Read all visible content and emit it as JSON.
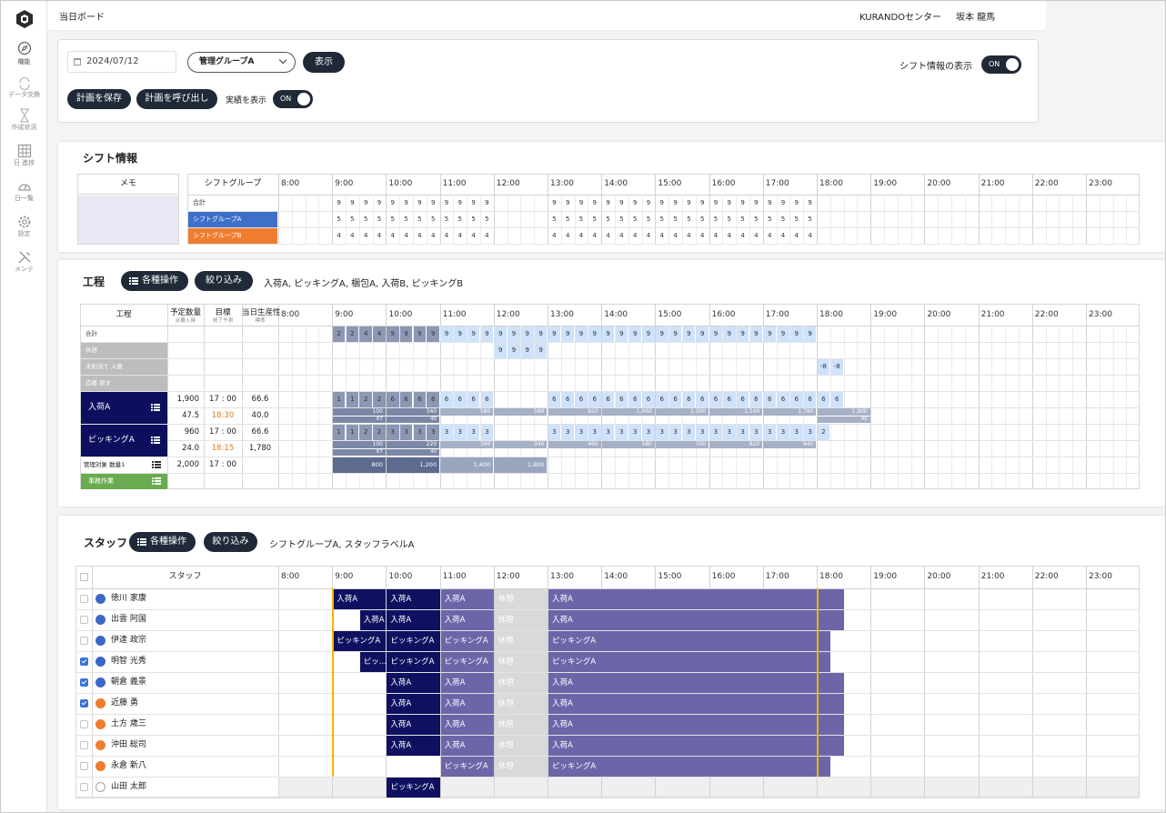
{
  "sidebar": {
    "items": [
      "機能",
      "データ交換",
      "作成状況",
      "日 進捗",
      "日一覧",
      "設定",
      "メンテ"
    ]
  },
  "header": {
    "title": "当日ボード",
    "center": "KURANDOセンター",
    "user": "坂本 龍馬"
  },
  "controls": {
    "date": "2024/07/12",
    "group": "管理グループA",
    "show_button": "表示",
    "shift_toggle_label": "シフト情報の表示",
    "shift_toggle": "ON",
    "save_button": "計画を保存",
    "load_button": "計画を呼び出し",
    "actual_label": "実績を表示",
    "actual_toggle": "ON"
  },
  "hours": [
    "8:00",
    "9:00",
    "10:00",
    "11:00",
    "12:00",
    "13:00",
    "14:00",
    "15:00",
    "16:00",
    "17:00",
    "18:00",
    "19:00",
    "20:00",
    "21:00",
    "22:00",
    "23:00"
  ],
  "shift": {
    "title": "シフト情報",
    "memo_header": "メモ",
    "group_header": "シフトグループ",
    "rows": [
      {
        "label": "合計",
        "color": "#ffffff",
        "values": [
          null,
          null,
          null,
          null,
          9,
          9,
          9,
          9,
          9,
          9,
          9,
          9,
          9,
          9,
          9,
          9,
          null,
          null,
          null,
          null,
          9,
          9,
          9,
          9,
          9,
          9,
          9,
          9,
          9,
          9,
          9,
          9,
          9,
          9,
          9,
          9,
          9,
          9,
          9,
          9,
          null,
          null,
          null,
          null,
          null,
          null,
          null,
          null,
          null,
          null,
          null,
          null,
          null,
          null,
          null,
          null,
          null,
          null,
          null,
          null,
          null,
          null,
          null,
          null
        ]
      },
      {
        "label": "シフトグループA",
        "color": "#3e6fc9",
        "values": [
          null,
          null,
          null,
          null,
          5,
          5,
          5,
          5,
          5,
          5,
          5,
          5,
          5,
          5,
          5,
          5,
          null,
          null,
          null,
          null,
          5,
          5,
          5,
          5,
          5,
          5,
          5,
          5,
          5,
          5,
          5,
          5,
          5,
          5,
          5,
          5,
          5,
          5,
          5,
          5,
          null,
          null,
          null,
          null,
          null,
          null,
          null,
          null,
          null,
          null,
          null,
          null,
          null,
          null,
          null,
          null,
          null,
          null,
          null,
          null,
          null,
          null,
          null,
          null
        ]
      },
      {
        "label": "シフトグループB",
        "color": "#ef7d30",
        "values": [
          null,
          null,
          null,
          null,
          4,
          4,
          4,
          4,
          4,
          4,
          4,
          4,
          4,
          4,
          4,
          4,
          null,
          null,
          null,
          null,
          4,
          4,
          4,
          4,
          4,
          4,
          4,
          4,
          4,
          4,
          4,
          4,
          4,
          4,
          4,
          4,
          4,
          4,
          4,
          4,
          null,
          null,
          null,
          null,
          null,
          null,
          null,
          null,
          null,
          null,
          null,
          null,
          null,
          null,
          null,
          null,
          null,
          null,
          null,
          null,
          null,
          null,
          null,
          null
        ]
      }
    ]
  },
  "process": {
    "title": "工程",
    "ops_button": "各種操作",
    "filter_button": "絞り込み",
    "filter_text": "入荷A, ピッキングA, 梱包A, 入荷B, ピッキングB",
    "columns": [
      {
        "label": "工程"
      },
      {
        "label": "予定数量",
        "sub": "必要人時"
      },
      {
        "label": "目標",
        "sub": "終了予測"
      },
      {
        "label": "当日生産性",
        "sub": "標準"
      }
    ],
    "summary_rows": [
      {
        "label": "合計",
        "shaded": false,
        "values": [
          null,
          null,
          null,
          null,
          2,
          2,
          4,
          4,
          9,
          9,
          9,
          9,
          9,
          9,
          9,
          9,
          9,
          9,
          9,
          9,
          9,
          9,
          9,
          9,
          9,
          9,
          9,
          9,
          9,
          9,
          9,
          9,
          9,
          9,
          9,
          9,
          9,
          9,
          9,
          9,
          null,
          null,
          null,
          null,
          null,
          null,
          null,
          null,
          null,
          null,
          null,
          null,
          null,
          null,
          null,
          null,
          null,
          null,
          null,
          null,
          null,
          null,
          null,
          null
        ]
      },
      {
        "label": "休憩",
        "shaded": true,
        "values": [
          null,
          null,
          null,
          null,
          null,
          null,
          null,
          null,
          null,
          null,
          null,
          null,
          null,
          null,
          null,
          null,
          9,
          9,
          9,
          9,
          null,
          null,
          null,
          null,
          null,
          null,
          null,
          null,
          null,
          null,
          null,
          null,
          null,
          null,
          null,
          null,
          null,
          null,
          null,
          null,
          null,
          null,
          null,
          null,
          null,
          null,
          null,
          null,
          null,
          null,
          null,
          null,
          null,
          null,
          null,
          null,
          null,
          null,
          null,
          null,
          null,
          null,
          null,
          null
        ]
      },
      {
        "label": "未割当て 人数",
        "shaded": true,
        "values": [
          null,
          null,
          null,
          null,
          null,
          null,
          null,
          null,
          null,
          null,
          null,
          null,
          null,
          null,
          null,
          null,
          null,
          null,
          null,
          null,
          null,
          null,
          null,
          null,
          null,
          null,
          null,
          null,
          null,
          null,
          null,
          null,
          null,
          null,
          null,
          null,
          null,
          null,
          null,
          null,
          -8,
          -8,
          null,
          null,
          null,
          null,
          null,
          null,
          null,
          null,
          null,
          null,
          null,
          null,
          null,
          null,
          null,
          null,
          null,
          null,
          null,
          null,
          null,
          null
        ]
      },
      {
        "label": "応援 戻す",
        "shaded": true
      }
    ],
    "tasks": [
      {
        "label": "入荷A",
        "color": "#0d0f5e",
        "planned": "1,900",
        "target": "17 : 00",
        "productivity": "66.6",
        "hours": "47.5",
        "forecast": "18:30",
        "standard": "40.0",
        "people": [
          null,
          null,
          null,
          null,
          1,
          1,
          2,
          2,
          6,
          6,
          6,
          6,
          6,
          6,
          6,
          6,
          null,
          null,
          null,
          null,
          6,
          6,
          6,
          6,
          6,
          6,
          6,
          6,
          6,
          6,
          6,
          6,
          6,
          6,
          6,
          6,
          6,
          6,
          6,
          6,
          6,
          6,
          null,
          null,
          null,
          null,
          null,
          null,
          null,
          null,
          null,
          null,
          null,
          null,
          null,
          null,
          null,
          null,
          null,
          null,
          null,
          null,
          null,
          null
        ],
        "progress": [
          null,
          "100",
          "340",
          "580",
          "580",
          "820",
          "1,060",
          "1,300",
          "1,540",
          "1,780",
          "1,900",
          null,
          null,
          null,
          null,
          null
        ],
        "rate": [
          null,
          "67",
          "40",
          null,
          null,
          null,
          null,
          null,
          null,
          null,
          "40",
          null,
          null,
          null,
          null,
          null
        ]
      },
      {
        "label": "ピッキングA",
        "color": "#0d0f5e",
        "planned": "960",
        "target": "17 : 00",
        "productivity": "66.6",
        "hours": "24.0",
        "forecast": "18:15",
        "standard": "1,780",
        "people": [
          null,
          null,
          null,
          null,
          1,
          1,
          2,
          2,
          3,
          3,
          3,
          3,
          3,
          3,
          3,
          3,
          null,
          null,
          null,
          null,
          3,
          3,
          3,
          3,
          3,
          3,
          3,
          3,
          3,
          3,
          3,
          3,
          3,
          3,
          3,
          3,
          3,
          3,
          3,
          3,
          2,
          null,
          null,
          null,
          null,
          null,
          null,
          null,
          null,
          null,
          null,
          null,
          null,
          null,
          null,
          null,
          null,
          null,
          null,
          null,
          null,
          null,
          null,
          null
        ],
        "progress": [
          null,
          "100",
          "220",
          "340",
          "340",
          "460",
          "580",
          "700",
          "820",
          "940",
          null,
          null,
          null,
          null,
          null,
          null
        ],
        "rate": [
          null,
          "67",
          "40",
          null,
          null,
          null,
          null,
          null,
          null,
          null,
          null,
          null,
          null,
          null,
          null,
          null
        ]
      }
    ],
    "managed": {
      "label": "管理対象 数量1",
      "planned": "2,000",
      "target": "17 : 00",
      "progress": [
        null,
        "800",
        "1,200",
        "1,400",
        "1,800",
        null,
        null,
        null,
        null,
        null,
        null,
        null,
        null,
        null,
        null,
        null
      ]
    },
    "office": {
      "label": "事務作業",
      "color": "#6aab4f"
    }
  },
  "staff": {
    "title": "スタッフ",
    "ops_button": "各種操作",
    "filter_button": "絞り込み",
    "filter_text": "シフトグループA, スタッフラベルA",
    "header": "スタッフ",
    "rows": [
      {
        "name": "徳川 家康",
        "color": "#3c67c6",
        "checked": false,
        "inactive": false,
        "blocks": [
          {
            "label": "入荷A",
            "start": 9,
            "end": 10,
            "color": "#0f1160"
          },
          {
            "label": "入荷A",
            "start": 10,
            "end": 11,
            "color": "#0f1160"
          },
          {
            "label": "入荷A",
            "start": 11,
            "end": 12,
            "color": "#6c66a9"
          },
          {
            "label": "休憩",
            "start": 12,
            "end": 13,
            "color": "#d9d9d9"
          },
          {
            "label": "入荷A",
            "start": 13,
            "end": 18.5,
            "color": "#6c66a9"
          }
        ]
      },
      {
        "name": "出雲 阿国",
        "color": "#3c67c6",
        "checked": false,
        "inactive": false,
        "blocks": [
          {
            "label": "入荷A",
            "start": 9.5,
            "end": 10,
            "color": "#0f1160"
          },
          {
            "label": "入荷A",
            "start": 10,
            "end": 11,
            "color": "#0f1160"
          },
          {
            "label": "入荷A",
            "start": 11,
            "end": 12,
            "color": "#6c66a9"
          },
          {
            "label": "休憩",
            "start": 12,
            "end": 13,
            "color": "#d9d9d9"
          },
          {
            "label": "入荷A",
            "start": 13,
            "end": 18.5,
            "color": "#6c66a9"
          }
        ]
      },
      {
        "name": "伊達 政宗",
        "color": "#3c67c6",
        "checked": false,
        "inactive": false,
        "blocks": [
          {
            "label": "ピッキングA",
            "start": 9,
            "end": 10,
            "color": "#0f1160"
          },
          {
            "label": "ピッキングA",
            "start": 10,
            "end": 11,
            "color": "#0f1160"
          },
          {
            "label": "ピッキングA",
            "start": 11,
            "end": 12,
            "color": "#6c66a9"
          },
          {
            "label": "休憩",
            "start": 12,
            "end": 13,
            "color": "#d9d9d9"
          },
          {
            "label": "ピッキングA",
            "start": 13,
            "end": 18.25,
            "color": "#6c66a9"
          }
        ]
      },
      {
        "name": "明智 光秀",
        "color": "#3c67c6",
        "checked": true,
        "inactive": false,
        "blocks": [
          {
            "label": "ピッ...",
            "start": 9.5,
            "end": 10,
            "color": "#0f1160"
          },
          {
            "label": "ピッキングA",
            "start": 10,
            "end": 11,
            "color": "#0f1160"
          },
          {
            "label": "ピッキングA",
            "start": 11,
            "end": 12,
            "color": "#6c66a9"
          },
          {
            "label": "休憩",
            "start": 12,
            "end": 13,
            "color": "#d9d9d9"
          },
          {
            "label": "ピッキングA",
            "start": 13,
            "end": 18.25,
            "color": "#6c66a9"
          }
        ]
      },
      {
        "name": "朝倉 義景",
        "color": "#3c67c6",
        "checked": true,
        "inactive": false,
        "blocks": [
          {
            "label": "入荷A",
            "start": 10,
            "end": 11,
            "color": "#0f1160"
          },
          {
            "label": "入荷A",
            "start": 11,
            "end": 12,
            "color": "#6c66a9"
          },
          {
            "label": "休憩",
            "start": 12,
            "end": 13,
            "color": "#d9d9d9"
          },
          {
            "label": "入荷A",
            "start": 13,
            "end": 18.5,
            "color": "#6c66a9"
          }
        ]
      },
      {
        "name": "近藤 勇",
        "color": "#ee7d2f",
        "checked": true,
        "inactive": false,
        "blocks": [
          {
            "label": "入荷A",
            "start": 10,
            "end": 11,
            "color": "#0f1160"
          },
          {
            "label": "入荷A",
            "start": 11,
            "end": 12,
            "color": "#6c66a9"
          },
          {
            "label": "休憩",
            "start": 12,
            "end": 13,
            "color": "#d9d9d9"
          },
          {
            "label": "入荷A",
            "start": 13,
            "end": 18.5,
            "color": "#6c66a9"
          }
        ]
      },
      {
        "name": "土方 歳三",
        "color": "#ee7d2f",
        "checked": false,
        "inactive": false,
        "blocks": [
          {
            "label": "入荷A",
            "start": 10,
            "end": 11,
            "color": "#0f1160"
          },
          {
            "label": "入荷A",
            "start": 11,
            "end": 12,
            "color": "#6c66a9"
          },
          {
            "label": "休憩",
            "start": 12,
            "end": 13,
            "color": "#d9d9d9"
          },
          {
            "label": "入荷A",
            "start": 13,
            "end": 18.5,
            "color": "#6c66a9"
          }
        ]
      },
      {
        "name": "沖田 総司",
        "color": "#ee7d2f",
        "checked": false,
        "inactive": false,
        "blocks": [
          {
            "label": "入荷A",
            "start": 10,
            "end": 11,
            "color": "#0f1160"
          },
          {
            "label": "入荷A",
            "start": 11,
            "end": 12,
            "color": "#6c66a9"
          },
          {
            "label": "休憩",
            "start": 12,
            "end": 13,
            "color": "#d9d9d9"
          },
          {
            "label": "入荷A",
            "start": 13,
            "end": 18.5,
            "color": "#6c66a9"
          }
        ]
      },
      {
        "name": "永倉 新八",
        "color": "#ee7d2f",
        "checked": false,
        "inactive": false,
        "blocks": [
          {
            "label": "ピッキングA",
            "start": 11,
            "end": 12,
            "color": "#6c66a9"
          },
          {
            "label": "休憩",
            "start": 12,
            "end": 13,
            "color": "#d9d9d9"
          },
          {
            "label": "ピッキングA",
            "start": 13,
            "end": 18.25,
            "color": "#6c66a9"
          }
        ]
      },
      {
        "name": "山田 太郎",
        "color": "#a6a6a6",
        "checked": false,
        "inactive": true,
        "blocks": [
          {
            "label": "ピッキングA",
            "start": 10,
            "end": 11,
            "color": "#0f1160"
          }
        ]
      }
    ]
  }
}
